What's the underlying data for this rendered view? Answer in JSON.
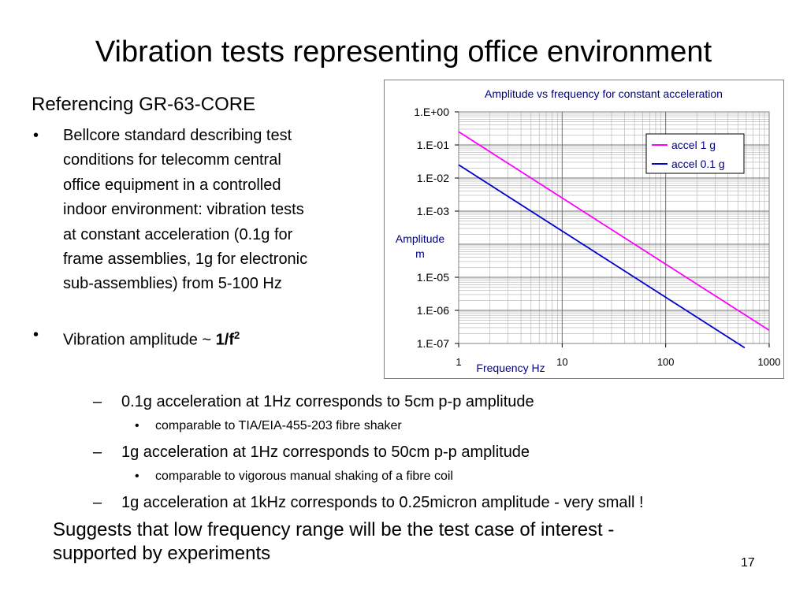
{
  "slide": {
    "title": "Vibration tests representing office environment",
    "heading": "Referencing GR-63-CORE",
    "bullets": [
      {
        "marker": "•",
        "text": "Bellcore standard describing test\nconditions for telecomm central\noffice equipment in a controlled\nindoor environment: vibration tests\nat constant acceleration (0.1g for\nframe assemblies, 1g for electronic\nsub-assemblies) from 5-100 Hz"
      },
      {
        "marker": "•",
        "text_prefix": "Vibration amplitude ~ ",
        "text_bold": "1/f",
        "text_sup": "2"
      }
    ],
    "subpoints": [
      {
        "marker": "–",
        "text": "0.1g acceleration at 1Hz corresponds to 5cm p-p amplitude"
      },
      {
        "marker": "•",
        "text": "comparable to TIA/EIA-455-203 fibre shaker"
      },
      {
        "marker": "–",
        "text": "1g acceleration at 1Hz corresponds to 50cm p-p amplitude"
      },
      {
        "marker": "•",
        "text": "comparable to vigorous manual shaking of a fibre coil"
      },
      {
        "marker": "–",
        "text": "1g acceleration at 1kHz corresponds to 0.25micron amplitude - very small !"
      }
    ],
    "conclusion": "Suggests that low frequency range will be the test case of interest -\n   supported by experiments",
    "page_number": "17"
  },
  "chart_data": {
    "type": "line",
    "title": "Amplitude vs frequency for constant acceleration",
    "xlabel": "Frequency Hz",
    "ylabel": "Amplitude\nm",
    "x_scale": "log",
    "y_scale": "log",
    "xlim": [
      1,
      1000
    ],
    "ylim": [
      1e-07,
      1
    ],
    "x_ticks": [
      {
        "value": 1,
        "label": "1"
      },
      {
        "value": 10,
        "label": "10"
      },
      {
        "value": 100,
        "label": "100"
      },
      {
        "value": 1000,
        "label": "1000"
      }
    ],
    "y_ticks": [
      {
        "value": 1,
        "label": "1.E+00"
      },
      {
        "value": 0.1,
        "label": "1.E-01"
      },
      {
        "value": 0.01,
        "label": "1.E-02"
      },
      {
        "value": 0.001,
        "label": "1.E-03"
      },
      {
        "value": 1e-05,
        "label": "1.E-05"
      },
      {
        "value": 1e-06,
        "label": "1.E-06"
      },
      {
        "value": 1e-07,
        "label": "1.E-07"
      }
    ],
    "grid": true,
    "legend_position": "top-right",
    "series": [
      {
        "name": "accel 1 g",
        "color": "#ff00ff",
        "points": [
          [
            1,
            0.25
          ],
          [
            1000,
            2.5e-07
          ]
        ]
      },
      {
        "name": "accel 0.1 g",
        "color": "#0000cc",
        "points": [
          [
            1,
            0.025
          ],
          [
            580,
            7.4e-08
          ]
        ]
      }
    ],
    "colors": {
      "axis": "#808080",
      "grid": "#b0b0b0",
      "text": "#000080",
      "tick_text": "#000000"
    }
  }
}
